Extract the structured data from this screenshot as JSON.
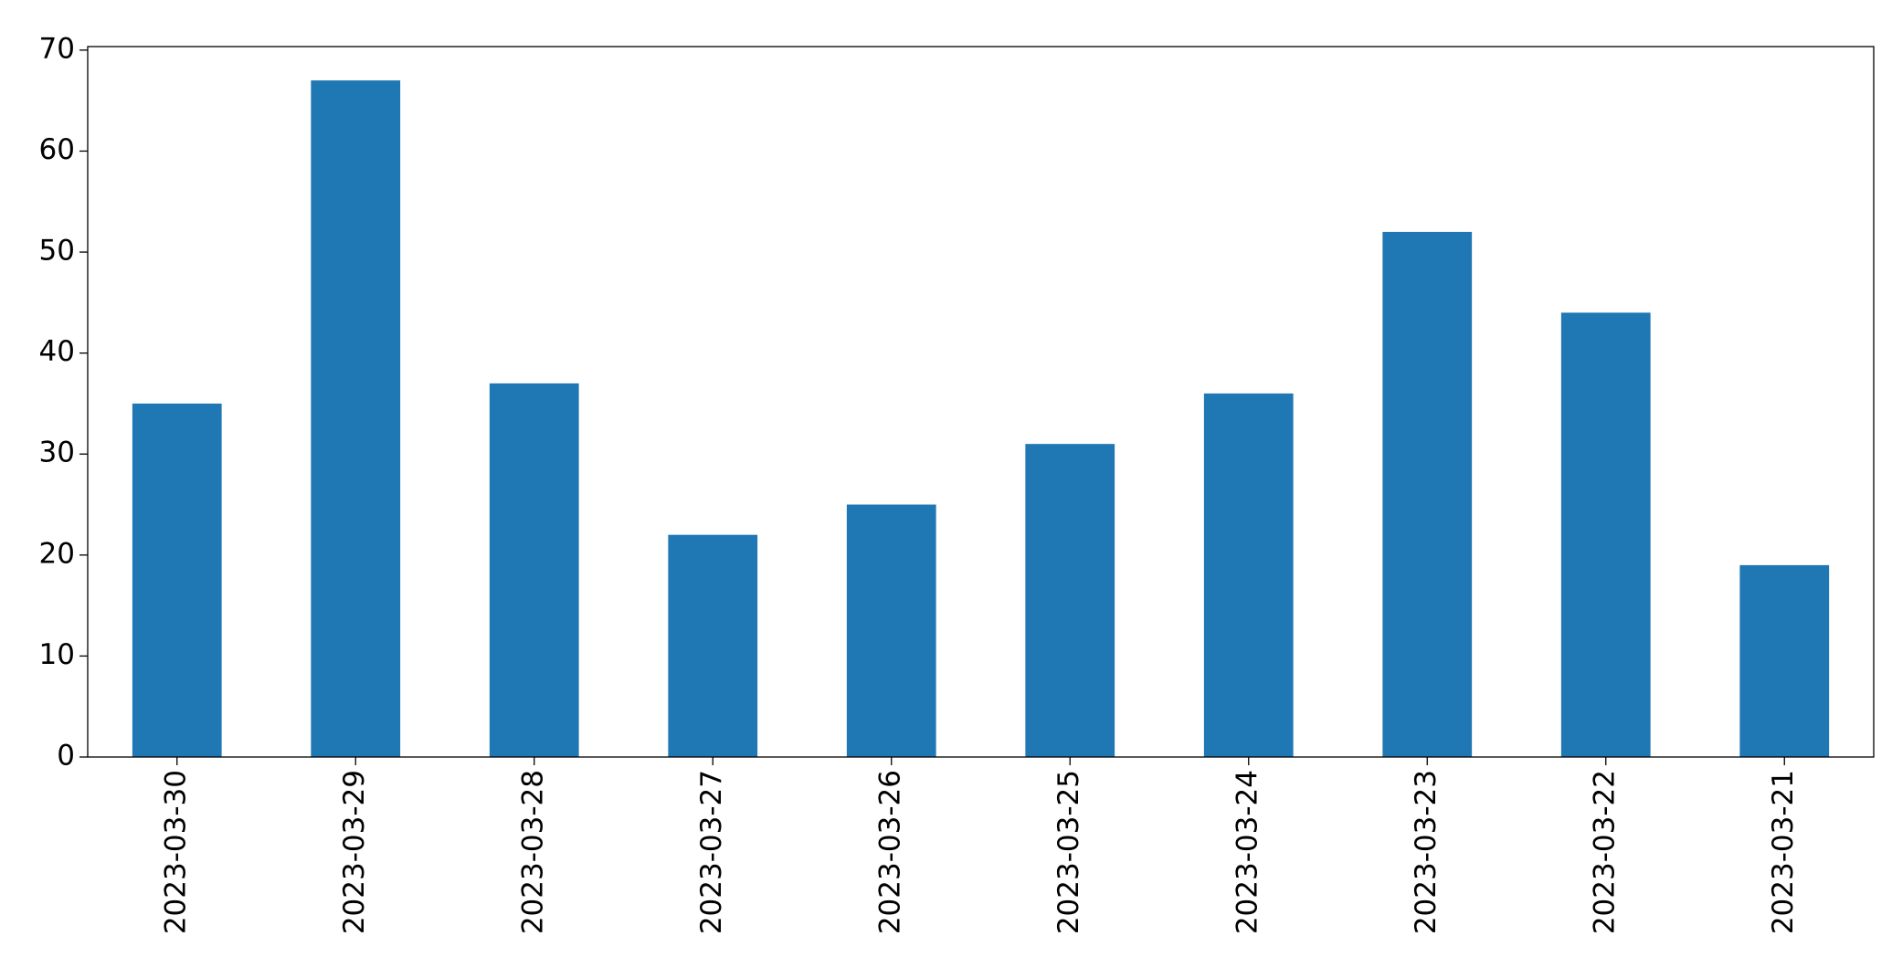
{
  "chart_data": {
    "type": "bar",
    "categories": [
      "2023-03-30",
      "2023-03-29",
      "2023-03-28",
      "2023-03-27",
      "2023-03-26",
      "2023-03-25",
      "2023-03-24",
      "2023-03-23",
      "2023-03-22",
      "2023-03-21"
    ],
    "values": [
      35,
      67,
      37,
      22,
      25,
      31,
      36,
      52,
      44,
      19
    ],
    "color": "#1f77b4",
    "ylim": [
      0,
      70.35
    ],
    "yticks": [
      0,
      10,
      20,
      30,
      40,
      50,
      60,
      70
    ],
    "grid": false
  }
}
